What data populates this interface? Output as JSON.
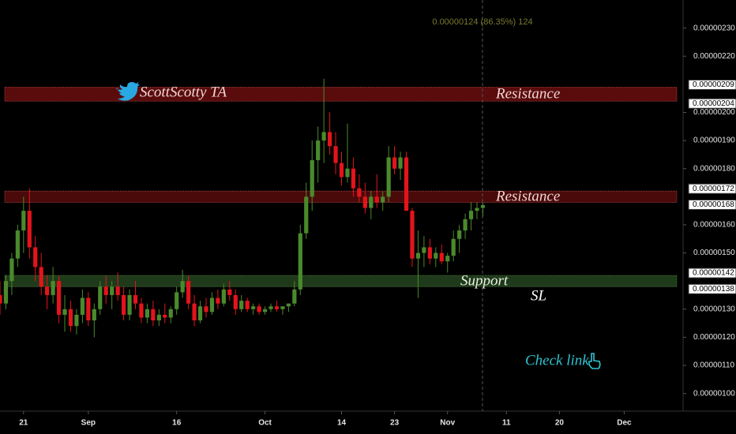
{
  "chart_data": {
    "type": "candlestick",
    "header": "0.00000124 (86.35%) 124",
    "xlim": [
      0,
      116
    ],
    "xticks": [
      {
        "value": 4,
        "label": "21"
      },
      {
        "value": 15,
        "label": "Sep"
      },
      {
        "value": 30,
        "label": "16"
      },
      {
        "value": 45,
        "label": "Oct"
      },
      {
        "value": 58,
        "label": "14"
      },
      {
        "value": 67,
        "label": "23"
      },
      {
        "value": 76,
        "label": "Nov"
      },
      {
        "value": 86,
        "label": "11"
      },
      {
        "value": 95,
        "label": "20"
      },
      {
        "value": 106,
        "label": "Dec"
      }
    ],
    "ylim": [
      9.4e-07,
      2.4e-06
    ],
    "yticks": [
      {
        "value": 1e-06,
        "label": "0.00000100"
      },
      {
        "value": 1.1e-06,
        "label": "0.00000110"
      },
      {
        "value": 1.2e-06,
        "label": "0.00000120"
      },
      {
        "value": 1.3e-06,
        "label": "0.00000130"
      },
      {
        "value": 1.5e-06,
        "label": "0.00000150"
      },
      {
        "value": 1.6e-06,
        "label": "0.00000160"
      },
      {
        "value": 1.8e-06,
        "label": "0.00000180"
      },
      {
        "value": 1.9e-06,
        "label": "0.00000190"
      },
      {
        "value": 2e-06,
        "label": "0.00000200"
      },
      {
        "value": 2.2e-06,
        "label": "0.00000220"
      },
      {
        "value": 2.3e-06,
        "label": "0.00000230"
      }
    ],
    "up_color": "#4a8a2c",
    "down_color": "#e3141b",
    "open": [
      1.35e-06,
      1.32e-06,
      1.4e-06,
      1.48e-06,
      1.58e-06,
      1.65e-06,
      1.52e-06,
      1.45e-06,
      1.38e-06,
      1.35e-06,
      1.4e-06,
      1.28e-06,
      1.3e-06,
      1.24e-06,
      1.28e-06,
      1.34e-06,
      1.26e-06,
      1.3e-06,
      1.38e-06,
      1.35e-06,
      1.38e-06,
      1.35e-06,
      1.28e-06,
      1.35e-06,
      1.32e-06,
      1.27e-06,
      1.3e-06,
      1.26e-06,
      1.28e-06,
      1.27e-06,
      1.3e-06,
      1.36e-06,
      1.4e-06,
      1.32e-06,
      1.26e-06,
      1.31e-06,
      1.29e-06,
      1.34e-06,
      1.32e-06,
      1.37e-06,
      1.35e-06,
      1.3e-06,
      1.33e-06,
      1.3e-06,
      1.31e-06,
      1.29e-06,
      1.3e-06,
      1.31e-06,
      1.3e-06,
      1.31e-06,
      1.32e-06,
      1.37e-06,
      1.57e-06,
      1.7e-06,
      1.83e-06,
      1.9e-06,
      1.93e-06,
      1.88e-06,
      1.82e-06,
      1.77e-06,
      1.8e-06,
      1.73e-06,
      1.7e-06,
      1.66e-06,
      1.7e-06,
      1.68e-06,
      1.7e-06,
      1.84e-06,
      1.8e-06,
      1.84e-06,
      1.65e-06,
      1.48e-06,
      1.5e-06,
      1.52e-06,
      1.48e-06,
      1.5e-06,
      1.47e-06,
      1.49e-06,
      1.55e-06,
      1.58e-06,
      1.62e-06,
      1.65e-06,
      1.66e-06
    ],
    "high": [
      1.4e-06,
      1.42e-06,
      1.5e-06,
      1.6e-06,
      1.7e-06,
      1.73e-06,
      1.56e-06,
      1.5e-06,
      1.42e-06,
      1.45e-06,
      1.42e-06,
      1.35e-06,
      1.33e-06,
      1.3e-06,
      1.37e-06,
      1.36e-06,
      1.32e-06,
      1.4e-06,
      1.42e-06,
      1.4e-06,
      1.43e-06,
      1.38e-06,
      1.37e-06,
      1.4e-06,
      1.34e-06,
      1.32e-06,
      1.33e-06,
      1.3e-06,
      1.32e-06,
      1.31e-06,
      1.38e-06,
      1.44e-06,
      1.42e-06,
      1.35e-06,
      1.33e-06,
      1.34e-06,
      1.36e-06,
      1.37e-06,
      1.39e-06,
      1.4e-06,
      1.37e-06,
      1.35e-06,
      1.34e-06,
      1.32e-06,
      1.32e-06,
      1.31e-06,
      1.32e-06,
      1.33e-06,
      1.31e-06,
      1.32e-06,
      1.4e-06,
      1.6e-06,
      1.75e-06,
      1.9e-06,
      1.95e-06,
      2.12e-06,
      2e-06,
      1.93e-06,
      1.86e-06,
      1.96e-06,
      1.84e-06,
      1.78e-06,
      1.75e-06,
      1.72e-06,
      1.78e-06,
      1.72e-06,
      1.88e-06,
      1.88e-06,
      1.86e-06,
      1.86e-06,
      1.66e-06,
      1.58e-06,
      1.56e-06,
      1.55e-06,
      1.52e-06,
      1.53e-06,
      1.5e-06,
      1.58e-06,
      1.6e-06,
      1.64e-06,
      1.68e-06,
      1.68e-06,
      1.68e-06
    ],
    "low": [
      1.28e-06,
      1.3e-06,
      1.35e-06,
      1.45e-06,
      1.5e-06,
      1.48e-06,
      1.4e-06,
      1.35e-06,
      1.3e-06,
      1.32e-06,
      1.25e-06,
      1.22e-06,
      1.22e-06,
      1.21e-06,
      1.25e-06,
      1.24e-06,
      1.2e-06,
      1.28e-06,
      1.32e-06,
      1.3e-06,
      1.33e-06,
      1.26e-06,
      1.26e-06,
      1.3e-06,
      1.25e-06,
      1.25e-06,
      1.24e-06,
      1.24e-06,
      1.25e-06,
      1.25e-06,
      1.28e-06,
      1.34e-06,
      1.3e-06,
      1.24e-06,
      1.25e-06,
      1.27e-06,
      1.28e-06,
      1.3e-06,
      1.31e-06,
      1.33e-06,
      1.28e-06,
      1.29e-06,
      1.29e-06,
      1.28e-06,
      1.28e-06,
      1.28e-06,
      1.29e-06,
      1.29e-06,
      1.28e-06,
      1.29e-06,
      1.31e-06,
      1.35e-06,
      1.55e-06,
      1.65e-06,
      1.75e-06,
      1.82e-06,
      1.85e-06,
      1.78e-06,
      1.74e-06,
      1.75e-06,
      1.7e-06,
      1.68e-06,
      1.64e-06,
      1.62e-06,
      1.66e-06,
      1.65e-06,
      1.68e-06,
      1.78e-06,
      1.76e-06,
      1.65e-06,
      1.45e-06,
      1.34e-06,
      1.45e-06,
      1.46e-06,
      1.45e-06,
      1.46e-06,
      1.43e-06,
      1.47e-06,
      1.5e-06,
      1.55e-06,
      1.58e-06,
      1.62e-06,
      1.63e-06
    ],
    "close": [
      1.32e-06,
      1.4e-06,
      1.48e-06,
      1.58e-06,
      1.65e-06,
      1.52e-06,
      1.45e-06,
      1.38e-06,
      1.35e-06,
      1.4e-06,
      1.28e-06,
      1.3e-06,
      1.24e-06,
      1.28e-06,
      1.34e-06,
      1.26e-06,
      1.3e-06,
      1.38e-06,
      1.35e-06,
      1.38e-06,
      1.35e-06,
      1.28e-06,
      1.35e-06,
      1.32e-06,
      1.27e-06,
      1.3e-06,
      1.26e-06,
      1.28e-06,
      1.27e-06,
      1.3e-06,
      1.36e-06,
      1.4e-06,
      1.32e-06,
      1.26e-06,
      1.31e-06,
      1.29e-06,
      1.34e-06,
      1.32e-06,
      1.37e-06,
      1.35e-06,
      1.3e-06,
      1.33e-06,
      1.3e-06,
      1.31e-06,
      1.29e-06,
      1.3e-06,
      1.31e-06,
      1.3e-06,
      1.31e-06,
      1.32e-06,
      1.37e-06,
      1.57e-06,
      1.7e-06,
      1.83e-06,
      1.9e-06,
      1.93e-06,
      1.88e-06,
      1.82e-06,
      1.77e-06,
      1.8e-06,
      1.73e-06,
      1.7e-06,
      1.66e-06,
      1.7e-06,
      1.68e-06,
      1.7e-06,
      1.84e-06,
      1.8e-06,
      1.84e-06,
      1.65e-06,
      1.48e-06,
      1.5e-06,
      1.52e-06,
      1.48e-06,
      1.5e-06,
      1.47e-06,
      1.49e-06,
      1.55e-06,
      1.58e-06,
      1.62e-06,
      1.65e-06,
      1.66e-06,
      1.67e-06
    ],
    "zones": [
      {
        "name": "Resistance",
        "top": {
          "value": 2.09e-06,
          "label": "0.00000209"
        },
        "bottom": {
          "value": 2.04e-06,
          "label": "0.00000204"
        },
        "color": "#5a0c0c"
      },
      {
        "name": "Resistance",
        "top": {
          "value": 1.72e-06,
          "label": "0.00000172"
        },
        "bottom": {
          "value": 1.68e-06,
          "label": "0.00000168"
        },
        "color": "#4a0a0a"
      },
      {
        "name": "Support",
        "top": {
          "value": 1.42e-06,
          "label": "0.00000142"
        },
        "bottom": {
          "value": 1.38e-06,
          "label": "0.00000138"
        },
        "color": "#1f3a1a"
      }
    ],
    "annotations": {
      "brand": "ScottScotty TA",
      "sl": "SL",
      "cta": "Check link"
    }
  }
}
